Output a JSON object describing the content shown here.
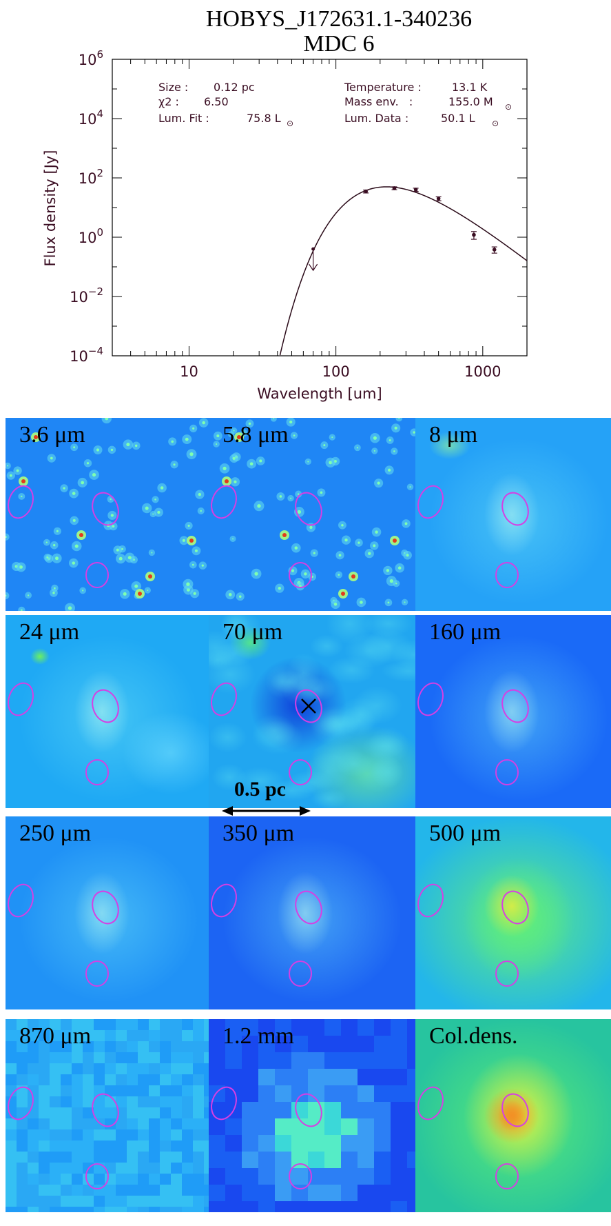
{
  "chart_data": [
    {
      "type": "line",
      "title": "HOBYS_J172631.1-340236",
      "subtitle": "MDC 6",
      "xlabel": "Wavelength [um]",
      "ylabel": "Flux density [Jy]",
      "xscale": "log",
      "yscale": "log",
      "xlim": [
        3,
        2000
      ],
      "ylim": [
        0.0001,
        1000000
      ],
      "x_ticks": [
        10,
        100,
        1000
      ],
      "x_tick_labels": [
        "10",
        "100",
        "1000"
      ],
      "y_ticks": [
        0.0001,
        0.01,
        1,
        100,
        10000,
        1000000
      ],
      "y_tick_labels": [
        {
          "base": "10",
          "exp": "−4"
        },
        {
          "base": "10",
          "exp": "−2"
        },
        {
          "base": "10",
          "exp": "0"
        },
        {
          "base": "10",
          "exp": "2"
        },
        {
          "base": "10",
          "exp": "4"
        },
        {
          "base": "10",
          "exp": "6"
        }
      ],
      "grid": false,
      "annotations": {
        "size": {
          "label": "Size :",
          "value": "0.12 pc"
        },
        "chi2": {
          "label": "χ2 :",
          "value": "6.50"
        },
        "lum_fit": {
          "label": "Lum. Fit :",
          "value": "75.8 L",
          "unit_sub": "⊙"
        },
        "temperature": {
          "label": "Temperature :",
          "value": "13.1 K"
        },
        "mass_env": {
          "label": "Mass env.   :",
          "value": "155.0 M",
          "unit_sub": "⊙"
        },
        "lum_data": {
          "label": "Lum. Data :",
          "value": "50.1 L",
          "unit_sub": "⊙"
        }
      },
      "points": [
        {
          "x": 70,
          "y": 0.4,
          "upper_limit": true
        },
        {
          "x": 160,
          "y": 35,
          "err": 4
        },
        {
          "x": 250,
          "y": 45,
          "err": 5
        },
        {
          "x": 350,
          "y": 40,
          "err": 5
        },
        {
          "x": 500,
          "y": 20,
          "err": 3
        },
        {
          "x": 870,
          "y": 1.2,
          "err": 0.35
        },
        {
          "x": 1200,
          "y": 0.38,
          "err": 0.09
        }
      ],
      "model_curve": {
        "temperature_K": 13.1,
        "peak_flux_Jy": 50,
        "beta": 2
      },
      "colors": {
        "line": "#000000",
        "points": "#3a0d22",
        "text": "#3a0d22"
      }
    },
    {
      "type": "heatmap",
      "rows": 4,
      "cols": 3,
      "panels": [
        {
          "label": "3.6 μm",
          "style": "stars",
          "bg": "#1f86f5"
        },
        {
          "label": "5.8 μm",
          "style": "stars",
          "bg": "#1f86f5"
        },
        {
          "label": "8 μm",
          "style": "diffuse",
          "bg": "#25a2f7"
        },
        {
          "label": "24 μm",
          "style": "diffuse",
          "bg": "#1fa9f4"
        },
        {
          "label": "70 μm",
          "style": "mottled",
          "bg": "#21a6f0"
        },
        {
          "label": "160 μm",
          "style": "diffuse",
          "bg": "#1a6af7"
        },
        {
          "label": "250 μm",
          "style": "diffuse",
          "bg": "#2092f6"
        },
        {
          "label": "350 μm",
          "style": "diffuse",
          "bg": "#1c64f3"
        },
        {
          "label": "500 μm",
          "style": "warm",
          "bg": "#23b6ea"
        },
        {
          "label": "870 μm",
          "style": "pixel",
          "bg": "#22a4f7"
        },
        {
          "label": "1.2 mm",
          "style": "pixelbig",
          "bg": "#1a60f4"
        },
        {
          "label": "Col.dens.",
          "style": "hot",
          "bg": "#27c49f"
        }
      ],
      "ellipse_color": "#d63fe3",
      "scalebar_label": "0.5 pc"
    }
  ]
}
